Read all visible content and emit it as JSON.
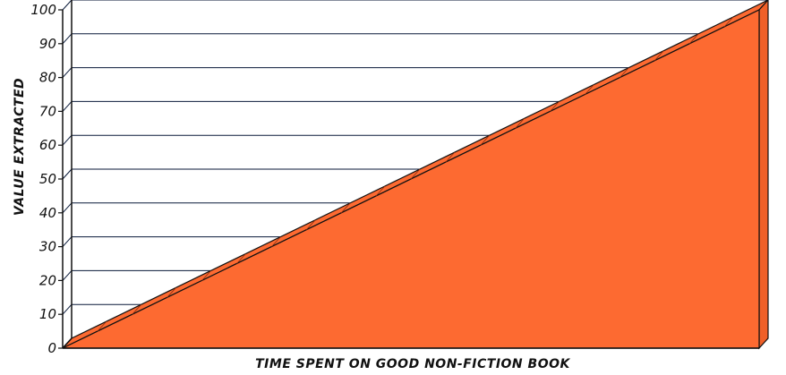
{
  "chart_data": {
    "type": "area",
    "title": "",
    "xlabel": "TIME SPENT ON GOOD NON-FICTION BOOK",
    "ylabel": "VALUE EXTRACTED",
    "ylim": [
      0,
      100
    ],
    "yticks": [
      "0",
      "10",
      "20",
      "30",
      "40",
      "50",
      "60",
      "70",
      "80",
      "90",
      "100"
    ],
    "x": [
      0,
      1
    ],
    "series": [
      {
        "values": [
          0,
          100
        ],
        "color": "#fd6a31"
      }
    ],
    "grid": true,
    "style": "3d"
  }
}
